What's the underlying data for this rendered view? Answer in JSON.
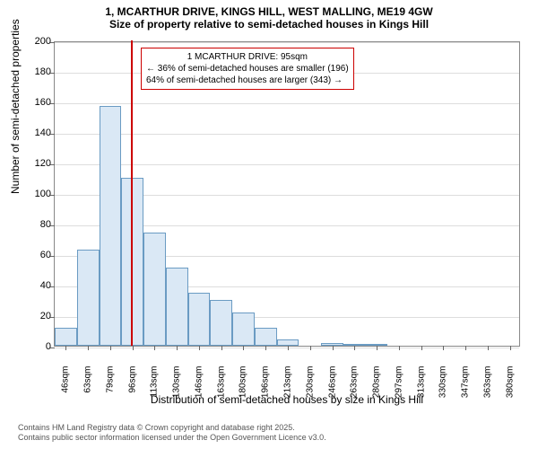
{
  "title": {
    "main": "1, MCARTHUR DRIVE, KINGS HILL, WEST MALLING, ME19 4GW",
    "sub": "Size of property relative to semi-detached houses in Kings Hill"
  },
  "chart": {
    "type": "histogram",
    "categories": [
      "46sqm",
      "63sqm",
      "79sqm",
      "96sqm",
      "113sqm",
      "130sqm",
      "146sqm",
      "163sqm",
      "180sqm",
      "196sqm",
      "213sqm",
      "230sqm",
      "246sqm",
      "263sqm",
      "280sqm",
      "297sqm",
      "313sqm",
      "330sqm",
      "347sqm",
      "363sqm",
      "380sqm"
    ],
    "values": [
      12,
      63,
      157,
      110,
      74,
      51,
      35,
      30,
      22,
      12,
      4,
      0,
      2,
      1,
      1,
      0,
      0,
      0,
      0,
      0,
      0
    ],
    "ylim": [
      0,
      200
    ],
    "yticks": [
      0,
      20,
      40,
      60,
      80,
      100,
      120,
      140,
      160,
      180,
      200
    ],
    "bar_fill": "#dae8f5",
    "bar_stroke": "#6a9bc3",
    "background_color": "#ffffff",
    "grid_color": "#dddddd",
    "marker": {
      "position_index": 2.94,
      "color": "#cc0000",
      "annotation": {
        "line1": "1 MCARTHUR DRIVE: 95sqm",
        "line2": "← 36% of semi-detached houses are smaller (196)",
        "line3": "64% of semi-detached houses are larger (343) →"
      }
    },
    "ylabel": "Number of semi-detached properties",
    "xlabel": "Distribution of semi-detached houses by size in Kings Hill",
    "label_fontsize": 12,
    "tick_fontsize": 11
  },
  "footer": {
    "line1": "Contains HM Land Registry data © Crown copyright and database right 2025.",
    "line2": "Contains public sector information licensed under the Open Government Licence v3.0."
  }
}
